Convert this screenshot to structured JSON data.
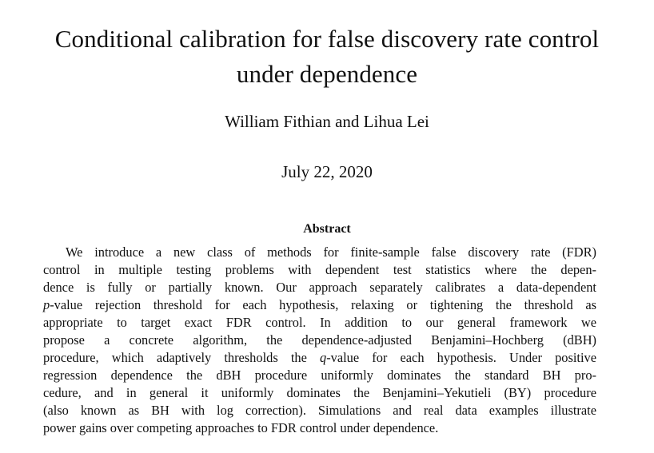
{
  "paper": {
    "title_line1": "Conditional calibration for false discovery rate control",
    "title_line2": "under dependence",
    "authors": "William Fithian and Lihua Lei",
    "date": "July 22, 2020",
    "abstract_heading": "Abstract",
    "abstract_lines": [
      "We introduce a new class of methods for finite-sample false discovery rate (FDR)",
      "control in multiple testing problems with dependent test statistics where the depen-",
      "dence is fully or partially known. Our approach separately calibrates a data-dependent",
      "p-value rejection threshold for each hypothesis, relaxing or tightening the threshold as",
      "appropriate to target exact FDR control. In addition to our general framework we",
      "propose a concrete algorithm, the dependence-adjusted Benjamini–Hochberg (dBH)",
      "procedure, which adaptively thresholds the q-value for each hypothesis. Under positive",
      "regression dependence the dBH procedure uniformly dominates the standard BH pro-",
      "cedure, and in general it uniformly dominates the Benjamini–Yekutieli (BY) procedure",
      "(also known as BH with log correction). Simulations and real data examples illustrate",
      "power gains over competing approaches to FDR control under dependence."
    ]
  }
}
